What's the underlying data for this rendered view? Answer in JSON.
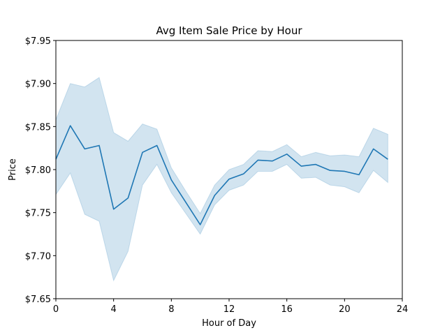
{
  "chart_data": {
    "type": "line",
    "title": "Avg Item Sale Price by Hour",
    "xlabel": "Hour of Day",
    "ylabel": "Price",
    "xlim": [
      0,
      24
    ],
    "ylim": [
      7.65,
      7.95
    ],
    "x_ticks": [
      0,
      4,
      8,
      12,
      16,
      20,
      24
    ],
    "x_tick_labels": [
      "0",
      "4",
      "8",
      "12",
      "16",
      "20",
      "24"
    ],
    "y_ticks": [
      7.65,
      7.7,
      7.75,
      7.8,
      7.85,
      7.9,
      7.95
    ],
    "y_tick_labels": [
      "$7.65",
      "$7.70",
      "$7.75",
      "$7.80",
      "$7.85",
      "$7.90",
      "$7.95"
    ],
    "grid": false,
    "line_color": "#1f77b4",
    "band_color": "#1f77b4",
    "x": [
      0,
      1,
      2,
      3,
      4,
      5,
      6,
      7,
      8,
      9,
      10,
      11,
      12,
      13,
      14,
      15,
      16,
      17,
      18,
      19,
      20,
      21,
      22,
      23
    ],
    "values": [
      7.812,
      7.851,
      7.824,
      7.828,
      7.754,
      7.767,
      7.82,
      7.828,
      7.788,
      7.762,
      7.736,
      7.77,
      7.789,
      7.795,
      7.811,
      7.81,
      7.818,
      7.804,
      7.806,
      7.799,
      7.798,
      7.794,
      7.824,
      7.812
    ],
    "band_upper": [
      7.858,
      7.9,
      7.896,
      7.907,
      7.843,
      7.833,
      7.853,
      7.847,
      7.802,
      7.775,
      7.749,
      7.782,
      7.8,
      7.806,
      7.822,
      7.821,
      7.829,
      7.815,
      7.82,
      7.816,
      7.817,
      7.815,
      7.848,
      7.841
    ],
    "band_lower": [
      7.771,
      7.796,
      7.748,
      7.74,
      7.671,
      7.705,
      7.782,
      7.806,
      7.773,
      7.749,
      7.725,
      7.759,
      7.776,
      7.782,
      7.798,
      7.798,
      7.806,
      7.79,
      7.791,
      7.782,
      7.78,
      7.773,
      7.799,
      7.785
    ]
  }
}
